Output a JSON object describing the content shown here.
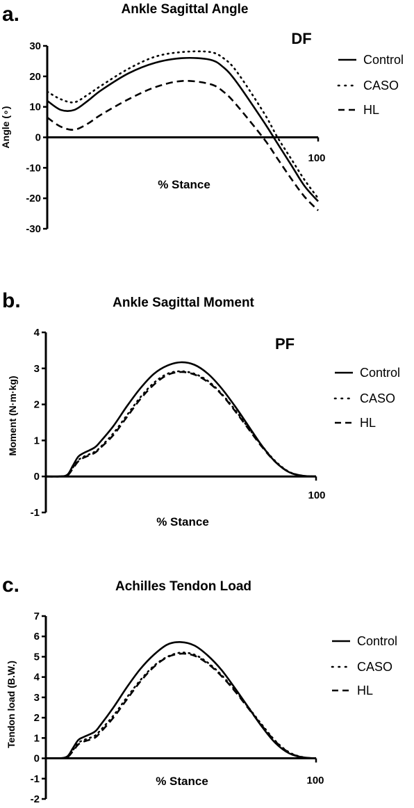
{
  "chart_data": [
    {
      "type": "line",
      "panel": "a.",
      "title": "Ankle Sagittal Angle",
      "ylabel": "Angle (∘)",
      "xlabel": "% Stance",
      "annotation": "DF",
      "x_tick_label": "100",
      "xlim": [
        0,
        100
      ],
      "ylim": [
        -30,
        30
      ],
      "yticks": [
        -30,
        -20,
        -10,
        0,
        10,
        20,
        30
      ],
      "legend": "right",
      "series": [
        {
          "name": "Control",
          "style": "solid",
          "x": [
            0,
            5,
            10,
            15,
            20,
            30,
            40,
            50,
            60,
            65,
            70,
            80,
            85,
            90,
            95,
            100
          ],
          "y": [
            12,
            9,
            9,
            12,
            15.5,
            21,
            24.5,
            26,
            25.5,
            23,
            18,
            5,
            -2,
            -9,
            -16,
            -21
          ]
        },
        {
          "name": "CASO",
          "style": "dotted",
          "x": [
            0,
            5,
            10,
            15,
            20,
            30,
            40,
            50,
            60,
            65,
            70,
            80,
            85,
            90,
            95,
            100
          ],
          "y": [
            15,
            12.5,
            11.5,
            14,
            17,
            22.5,
            26.5,
            28,
            28,
            26,
            21.5,
            8,
            0,
            -7,
            -14,
            -20
          ]
        },
        {
          "name": "HL",
          "style": "dashed",
          "x": [
            0,
            5,
            10,
            15,
            20,
            30,
            40,
            50,
            60,
            65,
            70,
            80,
            85,
            90,
            95,
            100
          ],
          "y": [
            6.5,
            3.5,
            2.5,
            4.5,
            7.5,
            12.5,
            16.5,
            18.5,
            17.5,
            15,
            10.5,
            -0.5,
            -7,
            -13.5,
            -19.5,
            -24
          ]
        }
      ]
    },
    {
      "type": "line",
      "panel": "b.",
      "title": "Ankle Sagittal Moment",
      "ylabel": "Moment (N·m·kg)",
      "xlabel": "% Stance",
      "annotation": "PF",
      "x_tick_label": "100",
      "xlim": [
        0,
        100
      ],
      "ylim": [
        -1,
        4
      ],
      "yticks": [
        -1,
        0,
        1,
        2,
        3,
        4
      ],
      "legend": "right",
      "series": [
        {
          "name": "Control",
          "style": "solid",
          "x": [
            0,
            5,
            8,
            10,
            12,
            14,
            18,
            20,
            25,
            30,
            35,
            40,
            45,
            50,
            55,
            60,
            65,
            70,
            75,
            80,
            85,
            90,
            95,
            100
          ],
          "y": [
            0,
            0,
            0.05,
            0.3,
            0.55,
            0.65,
            0.8,
            0.95,
            1.4,
            1.95,
            2.45,
            2.85,
            3.08,
            3.17,
            3.1,
            2.85,
            2.45,
            1.95,
            1.4,
            0.85,
            0.4,
            0.12,
            0.02,
            0
          ]
        },
        {
          "name": "CASO",
          "style": "dotted",
          "x": [
            0,
            5,
            8,
            10,
            12,
            14,
            18,
            20,
            25,
            30,
            35,
            40,
            45,
            50,
            55,
            60,
            65,
            70,
            75,
            80,
            85,
            90,
            95,
            100
          ],
          "y": [
            0,
            0,
            0.04,
            0.25,
            0.45,
            0.55,
            0.68,
            0.8,
            1.2,
            1.7,
            2.2,
            2.6,
            2.85,
            2.92,
            2.85,
            2.65,
            2.3,
            1.85,
            1.35,
            0.85,
            0.42,
            0.13,
            0.02,
            0
          ]
        },
        {
          "name": "HL",
          "style": "dashed",
          "x": [
            0,
            5,
            8,
            10,
            12,
            14,
            18,
            20,
            25,
            30,
            35,
            40,
            45,
            50,
            55,
            60,
            65,
            70,
            75,
            80,
            85,
            90,
            95,
            100
          ],
          "y": [
            0,
            0,
            0.03,
            0.22,
            0.42,
            0.52,
            0.65,
            0.78,
            1.15,
            1.65,
            2.15,
            2.55,
            2.82,
            2.9,
            2.83,
            2.62,
            2.28,
            1.82,
            1.32,
            0.82,
            0.4,
            0.12,
            0.02,
            0
          ]
        }
      ]
    },
    {
      "type": "line",
      "panel": "c.",
      "title": "Achilles Tendon Load",
      "ylabel": "Tendon load (B.W.)",
      "xlabel": "% Stance",
      "annotation": "",
      "x_tick_label": "100",
      "xlim": [
        0,
        100
      ],
      "ylim": [
        -2,
        7
      ],
      "yticks": [
        -2,
        -1,
        0,
        1,
        2,
        3,
        4,
        5,
        6,
        7
      ],
      "legend": "right",
      "series": [
        {
          "name": "Control",
          "style": "solid",
          "x": [
            0,
            5,
            8,
            10,
            12,
            14,
            18,
            20,
            25,
            30,
            35,
            40,
            45,
            50,
            55,
            60,
            65,
            70,
            75,
            80,
            85,
            90,
            95,
            100
          ],
          "y": [
            0,
            0,
            0.1,
            0.5,
            0.9,
            1.05,
            1.3,
            1.6,
            2.5,
            3.5,
            4.4,
            5.1,
            5.6,
            5.72,
            5.55,
            5.05,
            4.35,
            3.45,
            2.5,
            1.55,
            0.75,
            0.25,
            0.05,
            0
          ]
        },
        {
          "name": "CASO",
          "style": "dotted",
          "x": [
            0,
            5,
            8,
            10,
            12,
            14,
            18,
            20,
            25,
            30,
            35,
            40,
            45,
            50,
            55,
            60,
            65,
            70,
            75,
            80,
            85,
            90,
            95,
            100
          ],
          "y": [
            0,
            0,
            0.08,
            0.4,
            0.75,
            0.9,
            1.1,
            1.35,
            2.1,
            3.0,
            3.85,
            4.55,
            5.0,
            5.2,
            5.1,
            4.7,
            4.1,
            3.35,
            2.5,
            1.65,
            0.85,
            0.3,
            0.06,
            0
          ]
        },
        {
          "name": "HL",
          "style": "dashed",
          "x": [
            0,
            5,
            8,
            10,
            12,
            14,
            18,
            20,
            25,
            30,
            35,
            40,
            45,
            50,
            55,
            60,
            65,
            70,
            75,
            80,
            85,
            90,
            95,
            100
          ],
          "y": [
            0,
            0,
            0.06,
            0.35,
            0.68,
            0.82,
            1.0,
            1.25,
            2.0,
            2.9,
            3.78,
            4.5,
            4.98,
            5.15,
            5.05,
            4.65,
            4.05,
            3.3,
            2.45,
            1.6,
            0.82,
            0.28,
            0.05,
            0
          ]
        }
      ]
    }
  ]
}
